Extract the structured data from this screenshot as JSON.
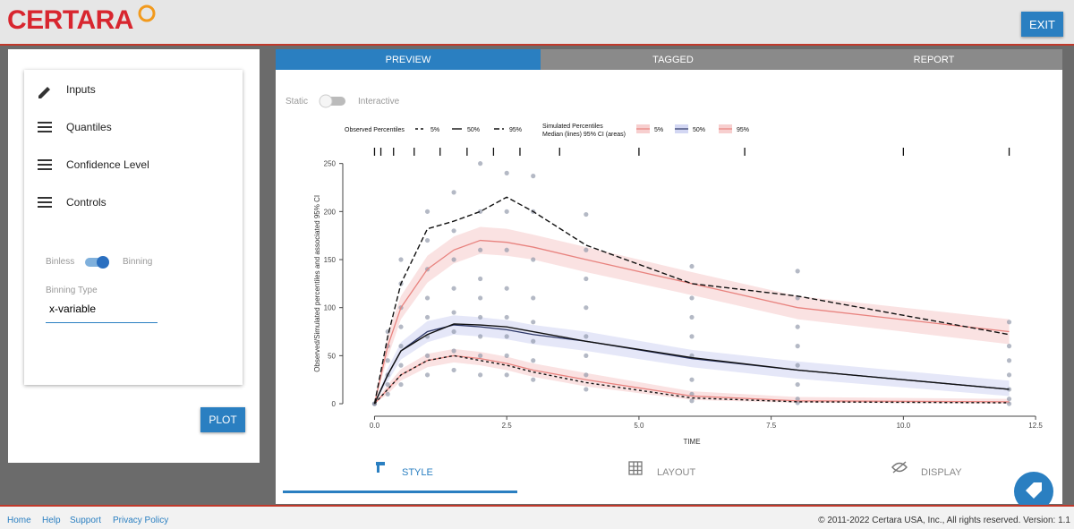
{
  "header": {
    "logo": "CERTARA",
    "exit": "EXIT"
  },
  "sidebar": {
    "menu": [
      "Inputs",
      "Quantiles",
      "Confidence Level",
      "Controls"
    ],
    "toggle_left": "Binless",
    "toggle_right": "Binning",
    "field_label": "Binning Type",
    "field_value": "x-variable",
    "plot": "PLOT"
  },
  "tabs": [
    "PREVIEW",
    "TAGGED",
    "REPORT"
  ],
  "mode": {
    "left": "Static",
    "right": "Interactive"
  },
  "bottom_tabs": [
    "STYLE",
    "LAYOUT",
    "DISPLAY"
  ],
  "footer": {
    "links": [
      "Home",
      "Help",
      "Support",
      "Privacy Policy"
    ],
    "copyright": "© 2011-2022 Certara USA, Inc., All rights reserved. Version: 1.1"
  },
  "chart_data": {
    "type": "line",
    "x_label": "TIME",
    "y_label": "Observed/Simulated percentiles and associated 95% CI",
    "xlim": [
      -0.6,
      12.6
    ],
    "ylim": [
      -13,
      259
    ],
    "xticks": [
      {
        "value": 0,
        "label": "0.0"
      },
      2.5,
      {
        "value": 5,
        "label": "5.0"
      },
      7.5,
      {
        "value": 10,
        "label": "10.0"
      },
      12.5
    ],
    "yticks": [
      0,
      50,
      100,
      150,
      200,
      250
    ],
    "bin_ticks": [
      0,
      0.12,
      0.36,
      0.75,
      1.24,
      1.75,
      2.25,
      2.75,
      3.5,
      5,
      7,
      10,
      12
    ],
    "x": [
      0,
      0.25,
      0.5,
      1,
      1.5,
      2,
      2.5,
      3,
      4,
      6,
      8,
      12
    ],
    "observed": {
      "title": "Observed Percentiles",
      "series": [
        {
          "name": "5%",
          "color": "#111111",
          "dash": "3 3",
          "values": [
            0,
            15,
            30,
            45,
            50,
            45,
            40,
            33,
            22,
            6,
            2,
            1
          ]
        },
        {
          "name": "50%",
          "color": "#111111",
          "dash": "none",
          "values": [
            0,
            30,
            55,
            72,
            83,
            82,
            80,
            75,
            65,
            48,
            35,
            15
          ]
        },
        {
          "name": "95%",
          "color": "#111111",
          "dash": "6 3",
          "values": [
            0,
            70,
            125,
            182,
            190,
            200,
            215,
            200,
            165,
            125,
            112,
            72
          ]
        }
      ]
    },
    "simulated": {
      "title": "Simulated Percentiles",
      "subtitle": "Median (lines) 95% CI (areas)",
      "series": [
        {
          "name": "5%",
          "color": "#e8837f",
          "band_color": "#f7cfcf",
          "values": [
            0,
            15,
            30,
            45,
            50,
            47,
            42,
            35,
            25,
            8,
            3,
            2
          ],
          "ci_low": [
            0,
            10,
            24,
            38,
            43,
            40,
            35,
            28,
            18,
            4,
            1,
            0
          ],
          "ci_high": [
            0,
            20,
            36,
            52,
            57,
            54,
            49,
            42,
            32,
            13,
            7,
            5
          ]
        },
        {
          "name": "50%",
          "color": "#2b3566",
          "band_color": "#d3d7f3",
          "values": [
            0,
            30,
            55,
            75,
            82,
            80,
            77,
            72,
            65,
            47,
            35,
            15
          ],
          "ci_low": [
            0,
            23,
            46,
            64,
            72,
            70,
            67,
            62,
            55,
            38,
            26,
            8
          ],
          "ci_high": [
            0,
            37,
            64,
            86,
            92,
            90,
            87,
            82,
            75,
            56,
            44,
            24
          ]
        },
        {
          "name": "95%",
          "color": "#e8837f",
          "band_color": "#f7cfcf",
          "values": [
            0,
            60,
            100,
            140,
            160,
            170,
            168,
            163,
            150,
            125,
            100,
            75
          ],
          "ci_low": [
            0,
            48,
            88,
            126,
            146,
            156,
            154,
            150,
            137,
            113,
            88,
            62
          ],
          "ci_high": [
            0,
            72,
            112,
            154,
            174,
            184,
            182,
            176,
            163,
            137,
            112,
            88
          ]
        }
      ]
    },
    "points": {
      "color": "#8c93a6",
      "x": [
        0,
        0,
        0,
        0.25,
        0.25,
        0.25,
        0.25,
        0.25,
        0.25,
        0.5,
        0.5,
        0.5,
        0.5,
        0.5,
        0.5,
        0.5,
        1,
        1,
        1,
        1,
        1,
        1,
        1,
        1,
        1.5,
        1.5,
        1.5,
        1.5,
        1.5,
        1.5,
        1.5,
        1.5,
        2,
        2,
        2,
        2,
        2,
        2,
        2,
        2,
        2,
        2.5,
        2.5,
        2.5,
        2.5,
        2.5,
        2.5,
        2.5,
        2.5,
        3,
        3,
        3,
        3,
        3,
        3,
        3,
        3,
        4,
        4,
        4,
        4,
        4,
        4,
        4,
        4,
        6,
        6,
        6,
        6,
        6,
        6,
        6,
        6,
        8,
        8,
        8,
        8,
        8,
        8,
        8,
        8,
        12,
        12,
        12,
        12,
        12,
        12,
        12
      ],
      "y": [
        0,
        0,
        0,
        10,
        20,
        30,
        45,
        60,
        75,
        20,
        40,
        60,
        80,
        100,
        125,
        150,
        30,
        50,
        70,
        90,
        110,
        140,
        170,
        200,
        35,
        55,
        75,
        95,
        120,
        150,
        180,
        220,
        30,
        50,
        70,
        90,
        110,
        130,
        160,
        200,
        250,
        30,
        50,
        70,
        90,
        120,
        160,
        200,
        240,
        25,
        45,
        65,
        85,
        110,
        150,
        200,
        237,
        15,
        30,
        50,
        70,
        100,
        130,
        160,
        197,
        3,
        10,
        25,
        50,
        70,
        90,
        110,
        143,
        1,
        5,
        20,
        40,
        60,
        80,
        110,
        138,
        0,
        5,
        15,
        30,
        45,
        60,
        85
      ]
    }
  }
}
